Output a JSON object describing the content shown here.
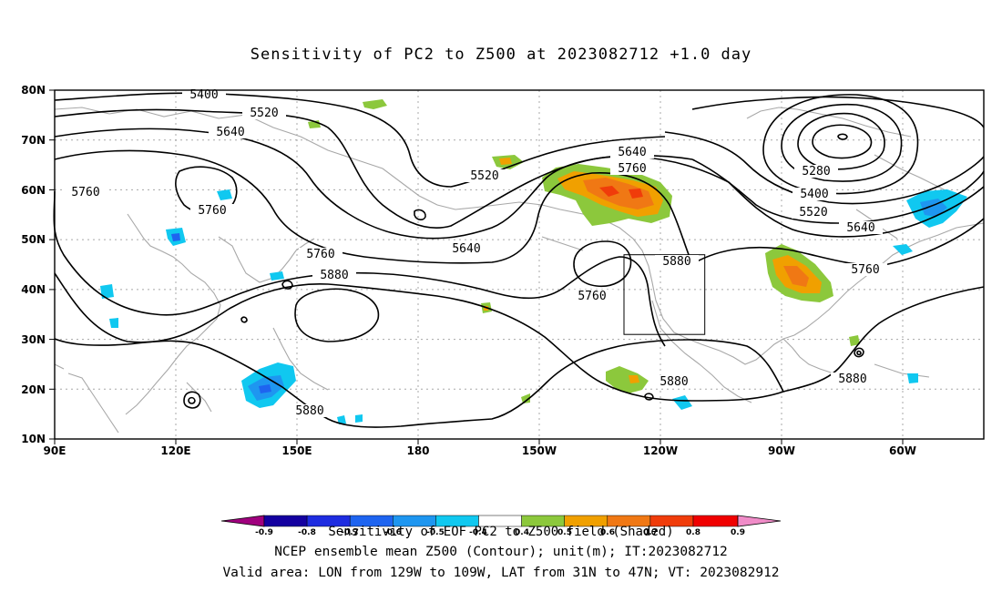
{
  "title": "Sensitivity of PC2 to Z500 at 2023082712 +1.0 day",
  "lat_labels": [
    "80N",
    "70N",
    "60N",
    "50N",
    "40N",
    "30N",
    "20N",
    "10N"
  ],
  "lon_labels": [
    "90E",
    "120E",
    "150E",
    "180",
    "150W",
    "120W",
    "90W",
    "60W"
  ],
  "contour_labels": [
    {
      "text": "5400"
    },
    {
      "text": "5520"
    },
    {
      "text": "5640"
    },
    {
      "text": "5760"
    },
    {
      "text": "5760"
    },
    {
      "text": "5520"
    },
    {
      "text": "5640"
    },
    {
      "text": "5760"
    },
    {
      "text": "5880"
    },
    {
      "text": "5640"
    },
    {
      "text": "5760"
    },
    {
      "text": "5760"
    },
    {
      "text": "5880"
    },
    {
      "text": "5880"
    },
    {
      "text": "5280"
    },
    {
      "text": "5400"
    },
    {
      "text": "5520"
    },
    {
      "text": "5640"
    },
    {
      "text": "5760"
    },
    {
      "text": "5880"
    },
    {
      "text": "5880"
    }
  ],
  "colorbar": {
    "ticks": [
      "-0.9",
      "-0.8",
      "-0.7",
      "-0.6",
      "-0.5",
      "-0.4",
      "0.4",
      "0.5",
      "0.6",
      "0.7",
      "0.8",
      "0.9"
    ],
    "colors": [
      "#a0007e",
      "#1400a0",
      "#1e2ce0",
      "#1e64f0",
      "#1e96f0",
      "#10c8f0",
      "#ffffff",
      "#8cc83c",
      "#f0a000",
      "#f07814",
      "#f03c0a",
      "#f00000",
      "#f08cc8"
    ]
  },
  "footer": {
    "line1": "Sensitivity of EOF PC2 to Z500 field (Shaded)",
    "line2": "NCEP ensemble mean Z500 (Contour); unit(m); IT:2023082712",
    "line3": "Valid area: LON from 129W to 109W, LAT from 31N to 47N; VT: 2023082912"
  },
  "colors": {
    "contour": "#000000",
    "coast": "#a8a8a8",
    "grid": "#a8a8a8",
    "positive": "#8cc83c",
    "negative": "#1e96f0"
  }
}
